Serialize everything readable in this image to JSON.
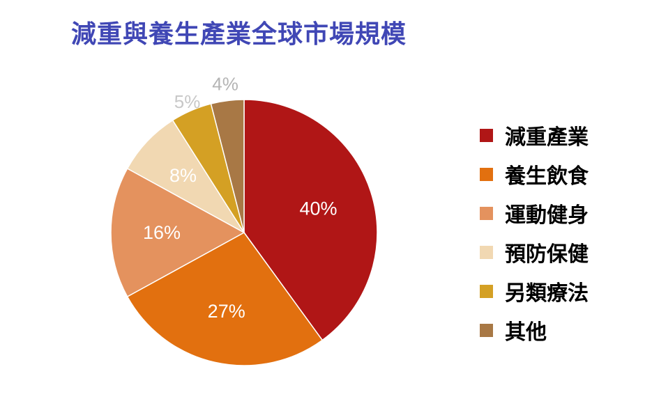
{
  "chart_data": {
    "type": "pie",
    "title": "減重與養生產業全球市場規模",
    "categories": [
      "減重產業",
      "養生飲食",
      "運動健身",
      "預防保健",
      "另類療法",
      "其他"
    ],
    "values": [
      40,
      27,
      16,
      8,
      5,
      4
    ],
    "value_labels": [
      "40%",
      "27%",
      "16%",
      "8%",
      "5%",
      "4%"
    ],
    "colors": [
      "#b01616",
      "#e2700f",
      "#e4925e",
      "#f1d8b2",
      "#d4a024",
      "#a87845"
    ],
    "label_colors": [
      "#ffffff",
      "#ffffff",
      "#ffffff",
      "#ffffff",
      "#c8c8c8",
      "#b4b4b4"
    ],
    "legend_position": "right",
    "start": "top",
    "direction": "clockwise"
  }
}
